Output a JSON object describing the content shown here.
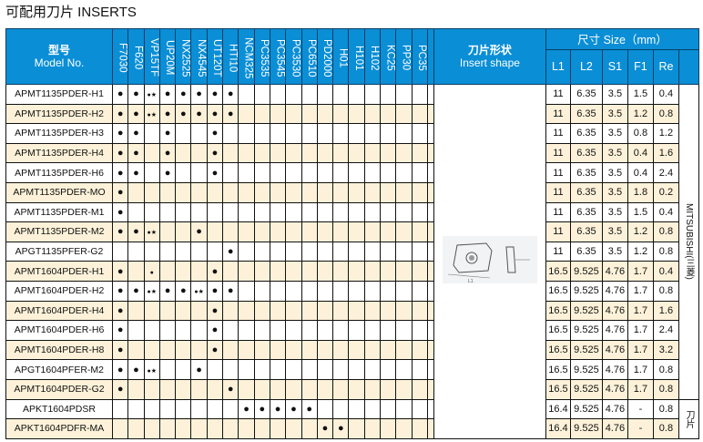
{
  "title": "可配用刀片 INSERTS",
  "header": {
    "model_cn": "型号",
    "model_en": "Model No.",
    "shape_cn": "刀片形状",
    "shape_en": "Insert shape",
    "size": "尺寸 Size（mm）",
    "dims": [
      "L1",
      "L2",
      "S1",
      "F1",
      "Re"
    ]
  },
  "grades": [
    "F7030",
    "F620",
    "VP15TF",
    "UP20M",
    "NX2525",
    "NX4545",
    "UT120T",
    "HTI10",
    "NCM325",
    "PC3535",
    "PC3545",
    "PC3530",
    "PC6510",
    "PD2000",
    "H01",
    "H101",
    "H102",
    "KC25",
    "PP30",
    "PC35"
  ],
  "brands": [
    "MITSUBISHI(三菱)",
    "刀片"
  ],
  "rows": [
    {
      "model": "APMT1135PDER-H1",
      "marks": [
        "●",
        "●",
        "●★",
        "●",
        "●",
        "●",
        "●",
        "●",
        "",
        "",
        "",
        "",
        "",
        "",
        "",
        "",
        "",
        "",
        "",
        ""
      ],
      "dims": [
        "11",
        "6.35",
        "3.5",
        "1.5",
        "0.4"
      ]
    },
    {
      "model": "APMT1135PDER-H2",
      "marks": [
        "●",
        "●",
        "●★",
        "●",
        "●",
        "●",
        "●",
        "●",
        "",
        "",
        "",
        "",
        "",
        "",
        "",
        "",
        "",
        "",
        "",
        ""
      ],
      "dims": [
        "11",
        "6.35",
        "3.5",
        "1.2",
        "0.8"
      ]
    },
    {
      "model": "APMT1135PDER-H3",
      "marks": [
        "●",
        "●",
        "",
        "●",
        "",
        "",
        "●",
        "",
        "",
        "",
        "",
        "",
        "",
        "",
        "",
        "",
        "",
        "",
        "",
        ""
      ],
      "dims": [
        "11",
        "6.35",
        "3.5",
        "0.8",
        "1.2"
      ]
    },
    {
      "model": "APMT1135PDER-H4",
      "marks": [
        "●",
        "●",
        "",
        "●",
        "",
        "",
        "●",
        "",
        "",
        "",
        "",
        "",
        "",
        "",
        "",
        "",
        "",
        "",
        "",
        ""
      ],
      "dims": [
        "11",
        "6.35",
        "3.5",
        "0.4",
        "1.6"
      ]
    },
    {
      "model": "APMT1135PDER-H6",
      "marks": [
        "●",
        "●",
        "",
        "●",
        "",
        "",
        "●",
        "",
        "",
        "",
        "",
        "",
        "",
        "",
        "",
        "",
        "",
        "",
        "",
        ""
      ],
      "dims": [
        "11",
        "6.35",
        "3.5",
        "0.4",
        "2.4"
      ]
    },
    {
      "model": "APMT1135PDER-MO",
      "marks": [
        "●",
        "",
        "",
        "",
        "",
        "",
        "",
        "",
        "",
        "",
        "",
        "",
        "",
        "",
        "",
        "",
        "",
        "",
        "",
        ""
      ],
      "dims": [
        "11",
        "6.35",
        "3.5",
        "1.8",
        "0.2"
      ]
    },
    {
      "model": "APMT1135PDER-M1",
      "marks": [
        "●",
        "",
        "",
        "",
        "",
        "",
        "",
        "",
        "",
        "",
        "",
        "",
        "",
        "",
        "",
        "",
        "",
        "",
        "",
        ""
      ],
      "dims": [
        "11",
        "6.35",
        "3.5",
        "1.5",
        "0.4"
      ]
    },
    {
      "model": "APMT1135PDER-M2",
      "marks": [
        "●",
        "●",
        "●★",
        "",
        "",
        "●",
        "",
        "",
        "",
        "",
        "",
        "",
        "",
        "",
        "",
        "",
        "",
        "",
        "",
        ""
      ],
      "dims": [
        "11",
        "6.35",
        "3.5",
        "1.2",
        "0.8"
      ]
    },
    {
      "model": "APGT1135PFER-G2",
      "marks": [
        "",
        "",
        "",
        "",
        "",
        "",
        "",
        "●",
        "",
        "",
        "",
        "",
        "",
        "",
        "",
        "",
        "",
        "",
        "",
        ""
      ],
      "dims": [
        "11",
        "6.35",
        "3.5",
        "1.2",
        "0.8"
      ]
    },
    {
      "model": "APMT1604PDER-H1",
      "marks": [
        "●",
        "",
        "•",
        "",
        "",
        "",
        "●",
        "",
        "",
        "",
        "",
        "",
        "",
        "",
        "",
        "",
        "",
        "",
        "",
        ""
      ],
      "dims": [
        "16.5",
        "9.525",
        "4.76",
        "1.7",
        "0.4"
      ]
    },
    {
      "model": "APMT1604PDER-H2",
      "marks": [
        "●",
        "●",
        "●★",
        "●",
        "●",
        "●★",
        "●",
        "●",
        "",
        "",
        "",
        "",
        "",
        "",
        "",
        "",
        "",
        "",
        "",
        ""
      ],
      "dims": [
        "16.5",
        "9.525",
        "4.76",
        "1.7",
        "0.8"
      ]
    },
    {
      "model": "APMT1604PDER-H4",
      "marks": [
        "●",
        "",
        "",
        "",
        "",
        "",
        "●",
        "",
        "",
        "",
        "",
        "",
        "",
        "",
        "",
        "",
        "",
        "",
        "",
        ""
      ],
      "dims": [
        "16.5",
        "9.525",
        "4.76",
        "1.7",
        "1.6"
      ]
    },
    {
      "model": "APMT1604PDER-H6",
      "marks": [
        "●",
        "",
        "",
        "",
        "",
        "",
        "●",
        "",
        "",
        "",
        "",
        "",
        "",
        "",
        "",
        "",
        "",
        "",
        "",
        ""
      ],
      "dims": [
        "16.5",
        "9.525",
        "4.76",
        "1.7",
        "2.4"
      ]
    },
    {
      "model": "APMT1604PDER-H8",
      "marks": [
        "●",
        "",
        "",
        "",
        "",
        "",
        "●",
        "",
        "",
        "",
        "",
        "",
        "",
        "",
        "",
        "",
        "",
        "",
        "",
        ""
      ],
      "dims": [
        "16.5",
        "9.525",
        "4.76",
        "1.7",
        "3.2"
      ]
    },
    {
      "model": "APGT1604PFER-M2",
      "marks": [
        "●",
        "●",
        "●★",
        "",
        "",
        "●",
        "",
        "",
        "",
        "",
        "",
        "",
        "",
        "",
        "",
        "",
        "",
        "",
        "",
        ""
      ],
      "dims": [
        "16.5",
        "9.525",
        "4.76",
        "1.7",
        "0.8"
      ]
    },
    {
      "model": "APMT1604PDER-G2",
      "marks": [
        "●",
        "",
        "",
        "",
        "",
        "",
        "",
        "●",
        "",
        "",
        "",
        "",
        "",
        "",
        "",
        "",
        "",
        "",
        "",
        ""
      ],
      "dims": [
        "16.5",
        "9.525",
        "4.76",
        "1.7",
        "0.8"
      ]
    },
    {
      "model": "APKT1604PDSR",
      "marks": [
        "",
        "",
        "",
        "",
        "",
        "",
        "",
        "",
        "●",
        "●",
        "●",
        "●",
        "●",
        "",
        "",
        "",
        "",
        "",
        "",
        ""
      ],
      "dims": [
        "16.4",
        "9.525",
        "4.76",
        "-",
        "0.8"
      ]
    },
    {
      "model": "APKT1604PDFR-MA",
      "marks": [
        "",
        "",
        "",
        "",
        "",
        "",
        "",
        "",
        "",
        "",
        "",
        "",
        "",
        "●",
        "●",
        "",
        "",
        "",
        "",
        ""
      ],
      "dims": [
        "16.4",
        "9.525",
        "4.76",
        "-",
        "0.8"
      ]
    }
  ]
}
